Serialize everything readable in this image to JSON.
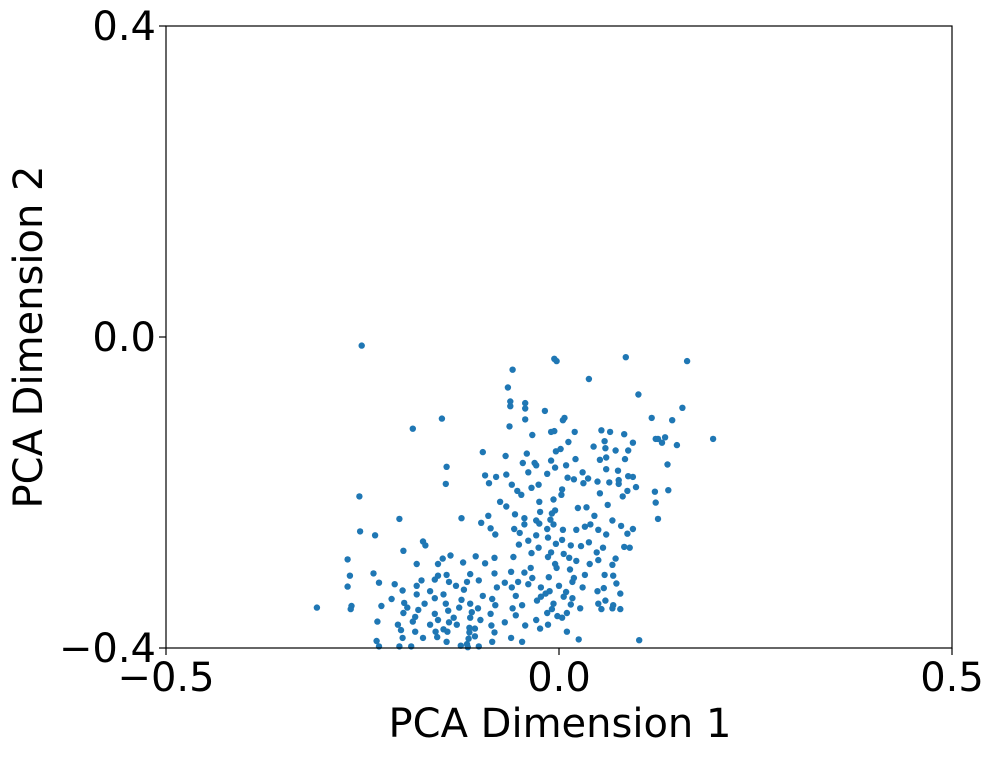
{
  "chart_data": {
    "type": "scatter",
    "title": "",
    "xlabel": "PCA Dimension 1",
    "ylabel": "PCA Dimension 2",
    "xlim": [
      -0.5,
      0.5
    ],
    "ylim": [
      -0.4,
      0.4
    ],
    "xticks": [
      -0.5,
      0.0,
      0.5
    ],
    "xtick_labels": [
      "−0.5",
      "0.0",
      "0.5"
    ],
    "yticks": [
      -0.4,
      0.0,
      0.4
    ],
    "ytick_labels": [
      "−0.4",
      "0.0",
      "0.4"
    ],
    "grid": false,
    "legend": "none",
    "marker_color": "#1f77b4",
    "points": [
      [
        -0.251,
        -0.011
      ],
      [
        -0.003,
        -0.031
      ],
      [
        -0.006,
        -0.028
      ],
      [
        0.085,
        -0.026
      ],
      [
        0.163,
        -0.031
      ],
      [
        -0.059,
        -0.042
      ],
      [
        0.038,
        -0.054
      ],
      [
        -0.065,
        -0.065
      ],
      [
        0.101,
        -0.074
      ],
      [
        -0.062,
        -0.083
      ],
      [
        -0.043,
        -0.085
      ],
      [
        -0.062,
        -0.089
      ],
      [
        -0.043,
        -0.092
      ],
      [
        0.157,
        -0.091
      ],
      [
        -0.018,
        -0.095
      ],
      [
        -0.149,
        -0.105
      ],
      [
        -0.043,
        -0.106
      ],
      [
        0.007,
        -0.104
      ],
      [
        0.118,
        -0.104
      ],
      [
        0.005,
        -0.107
      ],
      [
        0.144,
        -0.107
      ],
      [
        -0.063,
        -0.115
      ],
      [
        -0.186,
        -0.118
      ],
      [
        -0.01,
        -0.122
      ],
      [
        -0.006,
        -0.121
      ],
      [
        0.02,
        -0.122
      ],
      [
        0.054,
        -0.12
      ],
      [
        0.065,
        -0.122
      ],
      [
        -0.034,
        -0.126
      ],
      [
        0.083,
        -0.125
      ],
      [
        0.123,
        -0.131
      ],
      [
        0.126,
        -0.131
      ],
      [
        0.135,
        -0.129
      ],
      [
        0.196,
        -0.131
      ],
      [
        0.012,
        -0.135
      ],
      [
        0.058,
        -0.134
      ],
      [
        0.131,
        -0.136
      ],
      [
        0.094,
        -0.136
      ],
      [
        0.15,
        -0.139
      ],
      [
        0.044,
        -0.141
      ],
      [
        0.002,
        -0.144
      ],
      [
        0.059,
        -0.143
      ],
      [
        0.072,
        -0.146
      ],
      [
        -0.004,
        -0.147
      ],
      [
        0.088,
        -0.146
      ],
      [
        -0.097,
        -0.148
      ],
      [
        -0.041,
        -0.15
      ],
      [
        -0.068,
        -0.153
      ],
      [
        0.06,
        -0.155
      ],
      [
        0.021,
        -0.157
      ],
      [
        0.084,
        -0.157
      ],
      [
        0.052,
        -0.158
      ],
      [
        -0.01,
        -0.159
      ],
      [
        -0.031,
        -0.162
      ],
      [
        -0.046,
        -0.162
      ],
      [
        0.138,
        -0.164
      ],
      [
        -0.143,
        -0.167
      ],
      [
        -0.029,
        -0.165
      ],
      [
        0.009,
        -0.165
      ],
      [
        -0.005,
        -0.168
      ],
      [
        0.06,
        -0.17
      ],
      [
        0.075,
        -0.172
      ],
      [
        -0.039,
        -0.174
      ],
      [
        0.03,
        -0.174
      ],
      [
        -0.015,
        -0.176
      ],
      [
        -0.094,
        -0.178
      ],
      [
        -0.067,
        -0.177
      ],
      [
        -0.08,
        -0.18
      ],
      [
        0.088,
        -0.179
      ],
      [
        0.094,
        -0.18
      ],
      [
        0.011,
        -0.181
      ],
      [
        0.019,
        -0.183
      ],
      [
        0.037,
        -0.182
      ],
      [
        0.076,
        -0.184
      ],
      [
        0.049,
        -0.186
      ],
      [
        -0.144,
        -0.189
      ],
      [
        -0.089,
        -0.188
      ],
      [
        -0.06,
        -0.19
      ],
      [
        -0.026,
        -0.19
      ],
      [
        0.031,
        -0.188
      ],
      [
        0.064,
        -0.187
      ],
      [
        0.076,
        -0.189
      ],
      [
        -0.035,
        -0.194
      ],
      [
        0.004,
        -0.196
      ],
      [
        0.098,
        -0.193
      ],
      [
        0.122,
        -0.199
      ],
      [
        0.087,
        -0.198
      ],
      [
        -0.053,
        -0.198
      ],
      [
        0.139,
        -0.197
      ],
      [
        -0.048,
        -0.203
      ],
      [
        0.052,
        -0.201
      ],
      [
        0.003,
        -0.203
      ],
      [
        0.081,
        -0.205
      ],
      [
        -0.254,
        -0.205
      ],
      [
        -0.007,
        -0.209
      ],
      [
        -0.075,
        -0.212
      ],
      [
        -0.025,
        -0.212
      ],
      [
        0.123,
        -0.213
      ],
      [
        -0.067,
        -0.218
      ],
      [
        0.062,
        -0.216
      ],
      [
        0.035,
        -0.219
      ],
      [
        0.024,
        -0.22
      ],
      [
        -0.005,
        -0.223
      ],
      [
        -0.024,
        -0.225
      ],
      [
        -0.009,
        -0.227
      ],
      [
        -0.056,
        -0.228
      ],
      [
        -0.124,
        -0.233
      ],
      [
        -0.09,
        -0.23
      ],
      [
        0.045,
        -0.23
      ],
      [
        -0.044,
        -0.233
      ],
      [
        -0.029,
        -0.236
      ],
      [
        -0.011,
        -0.235
      ],
      [
        -0.203,
        -0.234
      ],
      [
        0.126,
        -0.234
      ],
      [
        0.068,
        -0.236
      ],
      [
        -0.099,
        -0.239
      ],
      [
        -0.025,
        -0.24
      ],
      [
        -0.044,
        -0.241
      ],
      [
        -0.007,
        -0.241
      ],
      [
        0.04,
        -0.241
      ],
      [
        0.079,
        -0.243
      ],
      [
        0.033,
        -0.244
      ],
      [
        0.094,
        -0.247
      ],
      [
        -0.087,
        -0.246
      ],
      [
        -0.057,
        -0.247
      ],
      [
        -0.015,
        -0.247
      ],
      [
        0.005,
        -0.248
      ],
      [
        0.022,
        -0.248
      ],
      [
        0.05,
        -0.248
      ],
      [
        -0.05,
        -0.252
      ],
      [
        -0.253,
        -0.25
      ],
      [
        -0.234,
        -0.255
      ],
      [
        -0.081,
        -0.254
      ],
      [
        -0.029,
        -0.255
      ],
      [
        0.06,
        -0.254
      ],
      [
        0.087,
        -0.253
      ],
      [
        -0.014,
        -0.258
      ],
      [
        0.004,
        -0.261
      ],
      [
        -0.039,
        -0.262
      ],
      [
        0.038,
        -0.264
      ],
      [
        -0.173,
        -0.263
      ],
      [
        -0.17,
        -0.268
      ],
      [
        -0.051,
        -0.267
      ],
      [
        -0.004,
        -0.266
      ],
      [
        0.015,
        -0.268
      ],
      [
        0.028,
        -0.269
      ],
      [
        -0.026,
        -0.271
      ],
      [
        0.056,
        -0.271
      ],
      [
        0.083,
        -0.27
      ],
      [
        0.09,
        -0.271
      ],
      [
        -0.198,
        -0.275
      ],
      [
        -0.035,
        -0.278
      ],
      [
        -0.01,
        -0.277
      ],
      [
        0.006,
        -0.279
      ],
      [
        0.048,
        -0.277
      ],
      [
        -0.106,
        -0.282
      ],
      [
        -0.138,
        -0.281
      ],
      [
        -0.014,
        -0.283
      ],
      [
        0.013,
        -0.284
      ],
      [
        -0.148,
        -0.285
      ],
      [
        -0.082,
        -0.284
      ],
      [
        -0.058,
        -0.283
      ],
      [
        0.072,
        -0.285
      ],
      [
        0.05,
        -0.287
      ],
      [
        0.022,
        -0.288
      ],
      [
        -0.094,
        -0.291
      ],
      [
        -0.122,
        -0.29
      ],
      [
        -0.154,
        -0.292
      ],
      [
        -0.181,
        -0.292
      ],
      [
        -0.269,
        -0.286
      ],
      [
        -0.005,
        -0.292
      ],
      [
        0.039,
        -0.292
      ],
      [
        0.068,
        -0.293
      ],
      [
        -0.036,
        -0.297
      ],
      [
        -0.003,
        -0.297
      ],
      [
        0.014,
        -0.299
      ],
      [
        -0.061,
        -0.302
      ],
      [
        -0.044,
        -0.303
      ],
      [
        -0.236,
        -0.304
      ],
      [
        -0.082,
        -0.304
      ],
      [
        -0.113,
        -0.305
      ],
      [
        -0.143,
        -0.306
      ],
      [
        -0.154,
        -0.307
      ],
      [
        -0.266,
        -0.307
      ],
      [
        0.033,
        -0.306
      ],
      [
        0.058,
        -0.306
      ],
      [
        0.069,
        -0.307
      ],
      [
        -0.034,
        -0.31
      ],
      [
        -0.013,
        -0.309
      ],
      [
        0.019,
        -0.31
      ],
      [
        -0.158,
        -0.312
      ],
      [
        -0.175,
        -0.313
      ],
      [
        -0.14,
        -0.315
      ],
      [
        -0.117,
        -0.315
      ],
      [
        -0.102,
        -0.313
      ],
      [
        -0.069,
        -0.316
      ],
      [
        -0.052,
        -0.315
      ],
      [
        -0.039,
        -0.318
      ],
      [
        0.017,
        -0.315
      ],
      [
        0.073,
        -0.317
      ],
      [
        -0.209,
        -0.318
      ],
      [
        -0.181,
        -0.32
      ],
      [
        -0.229,
        -0.316
      ],
      [
        -0.131,
        -0.32
      ],
      [
        -0.079,
        -0.322
      ],
      [
        -0.06,
        -0.322
      ],
      [
        -0.023,
        -0.322
      ],
      [
        0.0,
        -0.32
      ],
      [
        0.03,
        -0.322
      ],
      [
        0.057,
        -0.323
      ],
      [
        -0.269,
        -0.321
      ],
      [
        -0.199,
        -0.326
      ],
      [
        -0.164,
        -0.327
      ],
      [
        -0.121,
        -0.325
      ],
      [
        -0.012,
        -0.327
      ],
      [
        0.009,
        -0.328
      ],
      [
        0.049,
        -0.327
      ],
      [
        0.078,
        -0.33
      ],
      [
        -0.181,
        -0.331
      ],
      [
        -0.147,
        -0.331
      ],
      [
        -0.097,
        -0.333
      ],
      [
        -0.055,
        -0.333
      ],
      [
        -0.017,
        -0.33
      ],
      [
        -0.023,
        -0.334
      ],
      [
        0.006,
        -0.334
      ],
      [
        -0.213,
        -0.337
      ],
      [
        -0.158,
        -0.336
      ],
      [
        -0.124,
        -0.338
      ],
      [
        -0.085,
        -0.337
      ],
      [
        0.017,
        -0.336
      ],
      [
        -0.028,
        -0.339
      ],
      [
        0.059,
        -0.339
      ],
      [
        -0.197,
        -0.342
      ],
      [
        -0.171,
        -0.343
      ],
      [
        -0.144,
        -0.343
      ],
      [
        -0.113,
        -0.343
      ],
      [
        -0.081,
        -0.345
      ],
      [
        -0.047,
        -0.345
      ],
      [
        -0.007,
        -0.343
      ],
      [
        0.015,
        -0.344
      ],
      [
        0.05,
        -0.343
      ],
      [
        0.069,
        -0.345
      ],
      [
        -0.226,
        -0.346
      ],
      [
        -0.193,
        -0.348
      ],
      [
        -0.127,
        -0.348
      ],
      [
        -0.103,
        -0.349
      ],
      [
        -0.059,
        -0.349
      ],
      [
        -0.009,
        -0.35
      ],
      [
        0.027,
        -0.349
      ],
      [
        0.054,
        -0.35
      ],
      [
        0.068,
        -0.349
      ],
      [
        0.078,
        -0.35
      ],
      [
        -0.308,
        -0.348
      ],
      [
        -0.264,
        -0.346
      ],
      [
        -0.265,
        -0.35
      ],
      [
        -0.179,
        -0.351
      ],
      [
        -0.141,
        -0.352
      ],
      [
        -0.111,
        -0.354
      ],
      [
        -0.015,
        -0.355
      ],
      [
        0.01,
        -0.355
      ],
      [
        -0.198,
        -0.355
      ],
      [
        -0.158,
        -0.356
      ],
      [
        -0.087,
        -0.356
      ],
      [
        -0.055,
        -0.358
      ],
      [
        -0.002,
        -0.359
      ],
      [
        -0.183,
        -0.36
      ],
      [
        -0.134,
        -0.361
      ],
      [
        -0.113,
        -0.361
      ],
      [
        0.004,
        -0.361
      ],
      [
        -0.154,
        -0.364
      ],
      [
        -0.1,
        -0.364
      ],
      [
        -0.029,
        -0.364
      ],
      [
        -0.186,
        -0.366
      ],
      [
        -0.14,
        -0.367
      ],
      [
        -0.069,
        -0.367
      ],
      [
        -0.231,
        -0.366
      ],
      [
        -0.205,
        -0.37
      ],
      [
        -0.164,
        -0.37
      ],
      [
        -0.13,
        -0.37
      ],
      [
        -0.086,
        -0.371
      ],
      [
        -0.043,
        -0.371
      ],
      [
        -0.014,
        -0.37
      ],
      [
        -0.114,
        -0.374
      ],
      [
        -0.024,
        -0.375
      ],
      [
        -0.107,
        -0.375
      ],
      [
        -0.147,
        -0.376
      ],
      [
        -0.201,
        -0.377
      ],
      [
        -0.183,
        -0.379
      ],
      [
        -0.157,
        -0.379
      ],
      [
        -0.142,
        -0.379
      ],
      [
        -0.114,
        -0.38
      ],
      [
        -0.082,
        -0.38
      ],
      [
        0.01,
        -0.379
      ],
      [
        0.102,
        -0.39
      ],
      [
        -0.107,
        -0.385
      ],
      [
        -0.155,
        -0.386
      ],
      [
        -0.199,
        -0.387
      ],
      [
        -0.173,
        -0.387
      ],
      [
        -0.115,
        -0.388
      ],
      [
        -0.061,
        -0.387
      ],
      [
        0.025,
        -0.389
      ],
      [
        -0.232,
        -0.391
      ],
      [
        -0.143,
        -0.392
      ],
      [
        -0.085,
        -0.392
      ],
      [
        -0.047,
        -0.392
      ],
      [
        -0.117,
        -0.395
      ],
      [
        -0.188,
        -0.398
      ],
      [
        -0.125,
        -0.397
      ],
      [
        -0.102,
        -0.398
      ],
      [
        -0.203,
        -0.398
      ],
      [
        -0.229,
        -0.398
      ],
      [
        -0.116,
        -0.399
      ]
    ]
  }
}
